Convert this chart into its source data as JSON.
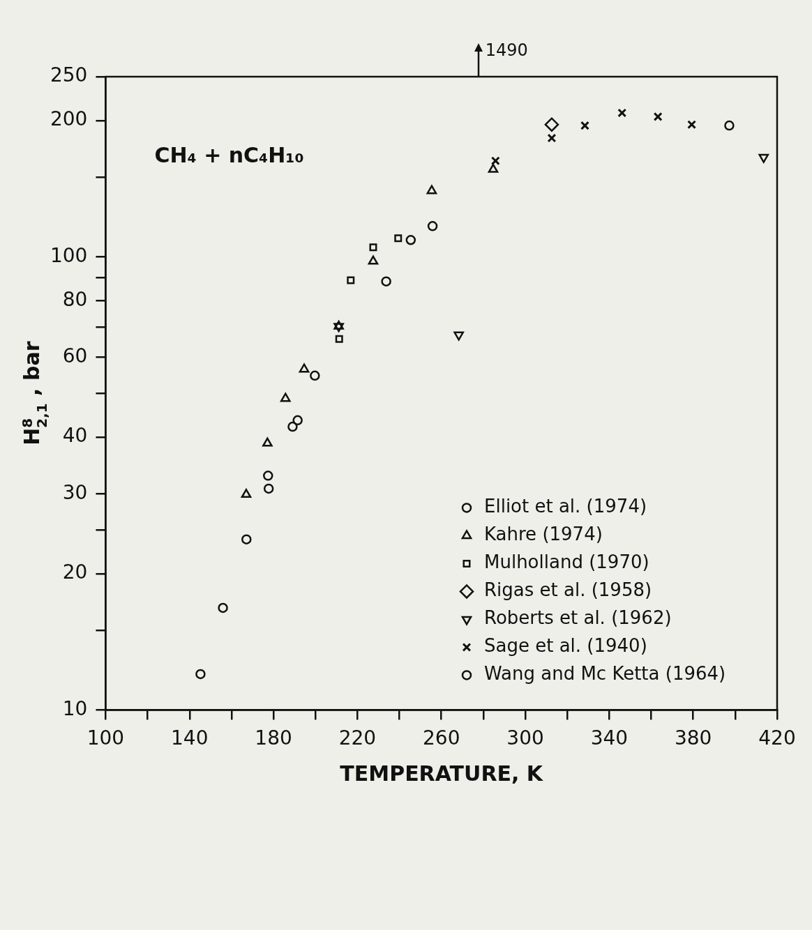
{
  "chart_data": {
    "type": "scatter",
    "xlabel": "TEMPERATURE, K",
    "ylabel": "H$_{2,1}$$^{8}$ , bar",
    "log": "y",
    "legend": "bottom right",
    "xlim": [
      100,
      420
    ],
    "xticks": [
      100,
      {
        "value": 120,
        "label": null
      },
      140,
      {
        "value": 160,
        "label": null
      },
      180,
      {
        "value": 200,
        "label": null
      },
      220,
      {
        "value": 240,
        "label": null
      },
      260,
      {
        "value": 280,
        "label": null
      },
      300,
      {
        "value": 320,
        "label": null
      },
      340,
      {
        "value": 360,
        "label": null
      },
      380,
      {
        "value": 400,
        "label": null
      },
      420
    ],
    "ylim": [
      10,
      250
    ],
    "yticks": [
      10,
      {
        "value": 15,
        "label": null
      },
      20,
      {
        "value": 25,
        "label": null
      },
      30,
      40,
      {
        "value": 50,
        "label": null
      },
      60,
      {
        "value": 70,
        "label": null
      },
      80,
      {
        "value": 90,
        "label": null
      },
      100,
      {
        "value": 150,
        "label": null
      },
      200,
      250
    ],
    "annotations": [
      "CH₄ + nC₄H₁₀",
      "1490"
    ],
    "series": [
      {
        "name": "Elliot et al. (1974)",
        "color": "#111111",
        "marker": "circle",
        "x": [
          145.2,
          155.9,
          167.1,
          177.4,
          189.1,
          191.5,
          199.7,
          233.7,
          245.4,
          255.8
        ],
        "values": [
          12,
          16.8,
          23.8,
          32.9,
          42.2,
          43.6,
          54.7,
          88.3,
          109,
          117
        ]
      },
      {
        "name": "Kahre (1974)",
        "color": "#111111",
        "marker": "triangle",
        "x": [
          167.0,
          177.1,
          185.7,
          194.6,
          211.1,
          227.5,
          255.4,
          284.7
        ],
        "values": [
          29.9,
          38.8,
          48.7,
          56.5,
          70.3,
          97.8,
          140,
          156
        ]
      },
      {
        "name": "Mulholland (1970)",
        "color": "#111111",
        "marker": "square",
        "x": [
          211.3,
          216.8,
          227.5,
          239.4
        ],
        "values": [
          65.9,
          88.8,
          105,
          110
        ]
      },
      {
        "name": "Rigas et al. (1958)",
        "color": "#111111",
        "marker": "diamond",
        "x": [
          312.6
        ],
        "values": [
          196
        ]
      },
      {
        "name": "Roberts et al. (1962)",
        "color": "#111111",
        "marker": "triangle-down",
        "x": [
          211.1,
          268.3,
          413.6
        ],
        "values": [
          70.3,
          67.3,
          166
        ]
      },
      {
        "name": "Sage et al. (1940)",
        "color": "#111111",
        "marker": "cross",
        "x": [
          285.8,
          312.6,
          328.4,
          346.1,
          363.2,
          379.3
        ],
        "values": [
          163,
          183,
          195,
          208,
          204,
          196
        ]
      },
      {
        "name": "Wang and Mc Ketta (1964)",
        "color": "#111111",
        "marker": "circle",
        "x": [
          177.7,
          397.2
        ],
        "values": [
          30.8,
          195
        ]
      }
    ]
  }
}
